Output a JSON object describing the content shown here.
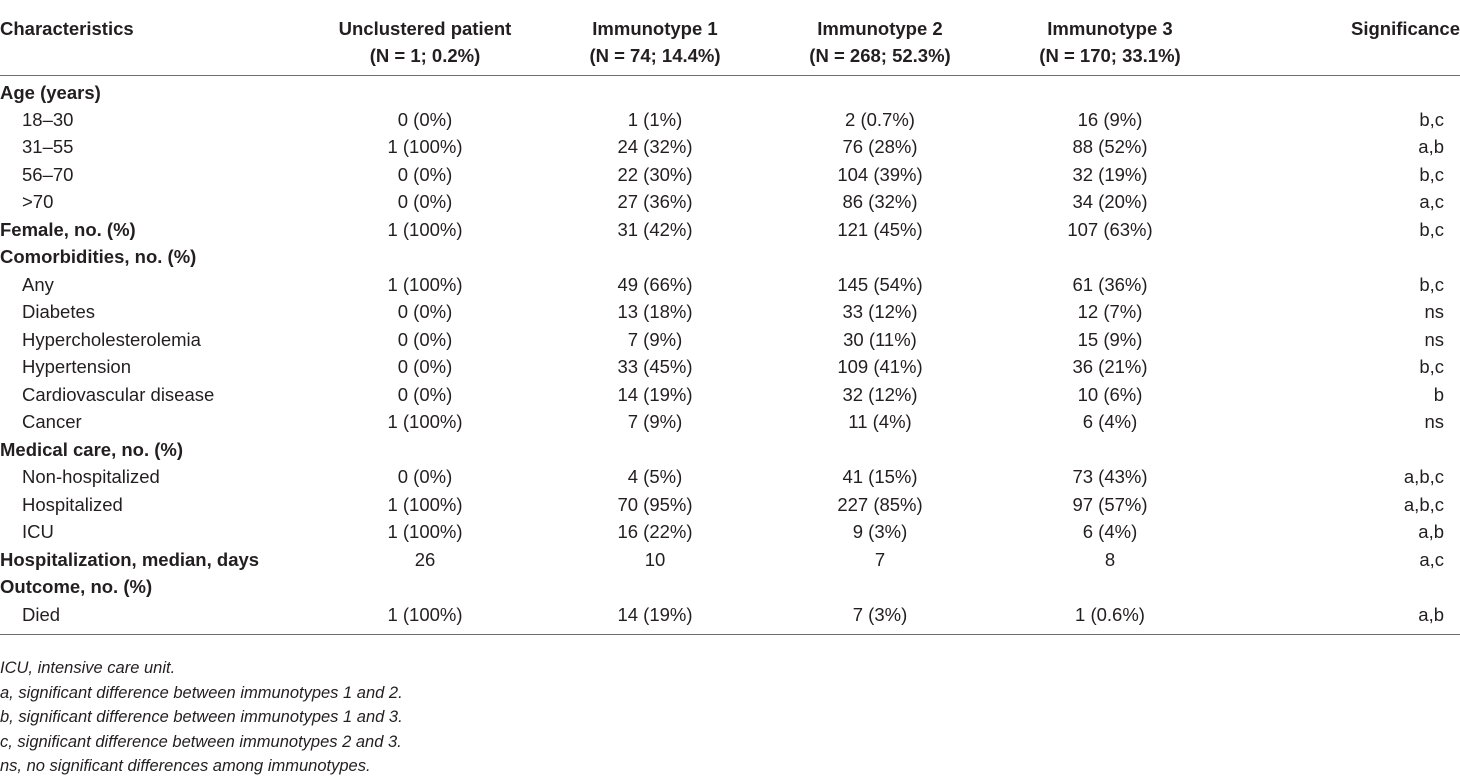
{
  "table": {
    "headers": [
      {
        "line1": "Characteristics",
        "line2": ""
      },
      {
        "line1": "Unclustered patient",
        "line2": "(N = 1; 0.2%)"
      },
      {
        "line1": "Immunotype 1",
        "line2": "(N = 74; 14.4%)"
      },
      {
        "line1": "Immunotype 2",
        "line2": "(N = 268; 52.3%)"
      },
      {
        "line1": "Immunotype 3",
        "line2": "(N = 170; 33.1%)"
      },
      {
        "line1": "Significance",
        "line2": ""
      }
    ],
    "rows": [
      {
        "type": "group",
        "label": "Age (years)",
        "cells": [
          "",
          "",
          "",
          "",
          ""
        ]
      },
      {
        "type": "sub",
        "label": "18–30",
        "cells": [
          "0 (0%)",
          "1 (1%)",
          "2 (0.7%)",
          "16 (9%)",
          "b,c"
        ]
      },
      {
        "type": "sub",
        "label": "31–55",
        "cells": [
          "1 (100%)",
          "24 (32%)",
          "76 (28%)",
          "88 (52%)",
          "a,b"
        ]
      },
      {
        "type": "sub",
        "label": "56–70",
        "cells": [
          "0 (0%)",
          "22 (30%)",
          "104 (39%)",
          "32 (19%)",
          "b,c"
        ]
      },
      {
        "type": "sub",
        "label": ">70",
        "cells": [
          "0 (0%)",
          "27 (36%)",
          "86 (32%)",
          "34 (20%)",
          "a,c"
        ]
      },
      {
        "type": "group",
        "label": "Female, no. (%)",
        "cells": [
          "1 (100%)",
          "31 (42%)",
          "121 (45%)",
          "107 (63%)",
          "b,c"
        ]
      },
      {
        "type": "group",
        "label": "Comorbidities, no. (%)",
        "cells": [
          "",
          "",
          "",
          "",
          ""
        ]
      },
      {
        "type": "sub",
        "label": "Any",
        "cells": [
          "1 (100%)",
          "49 (66%)",
          "145 (54%)",
          "61 (36%)",
          "b,c"
        ]
      },
      {
        "type": "sub",
        "label": "Diabetes",
        "cells": [
          "0 (0%)",
          "13 (18%)",
          "33 (12%)",
          "12 (7%)",
          "ns"
        ]
      },
      {
        "type": "sub",
        "label": "Hypercholesterolemia",
        "cells": [
          "0 (0%)",
          "7 (9%)",
          "30 (11%)",
          "15 (9%)",
          "ns"
        ]
      },
      {
        "type": "sub",
        "label": "Hypertension",
        "cells": [
          "0 (0%)",
          "33 (45%)",
          "109 (41%)",
          "36 (21%)",
          "b,c"
        ]
      },
      {
        "type": "sub",
        "label": "Cardiovascular disease",
        "cells": [
          "0 (0%)",
          "14 (19%)",
          "32 (12%)",
          "10 (6%)",
          "b"
        ]
      },
      {
        "type": "sub",
        "label": "Cancer",
        "cells": [
          "1 (100%)",
          "7 (9%)",
          "11 (4%)",
          "6 (4%)",
          "ns"
        ]
      },
      {
        "type": "group",
        "label": "Medical care, no. (%)",
        "cells": [
          "",
          "",
          "",
          "",
          ""
        ]
      },
      {
        "type": "sub",
        "label": "Non-hospitalized",
        "cells": [
          "0 (0%)",
          "4 (5%)",
          "41 (15%)",
          "73 (43%)",
          "a,b,c"
        ]
      },
      {
        "type": "sub",
        "label": "Hospitalized",
        "cells": [
          "1 (100%)",
          "70 (95%)",
          "227 (85%)",
          "97 (57%)",
          "a,b,c"
        ]
      },
      {
        "type": "sub",
        "label": "ICU",
        "cells": [
          "1 (100%)",
          "16 (22%)",
          "9 (3%)",
          "6 (4%)",
          "a,b"
        ]
      },
      {
        "type": "group",
        "label": "Hospitalization, median, days",
        "cells": [
          "26",
          "10",
          "7",
          "8",
          "a,c"
        ]
      },
      {
        "type": "group",
        "label": "Outcome, no. (%)",
        "cells": [
          "",
          "",
          "",
          "",
          ""
        ]
      },
      {
        "type": "sub",
        "label": "Died",
        "cells": [
          "1 (100%)",
          "14 (19%)",
          "7 (3%)",
          "1 (0.6%)",
          "a,b"
        ]
      }
    ]
  },
  "footnotes": [
    "ICU, intensive care unit.",
    "a, significant difference between immunotypes 1 and 2.",
    "b, significant difference between immunotypes 1 and 3.",
    "c, significant difference between immunotypes 2 and 3.",
    "ns, no significant differences among immunotypes."
  ]
}
